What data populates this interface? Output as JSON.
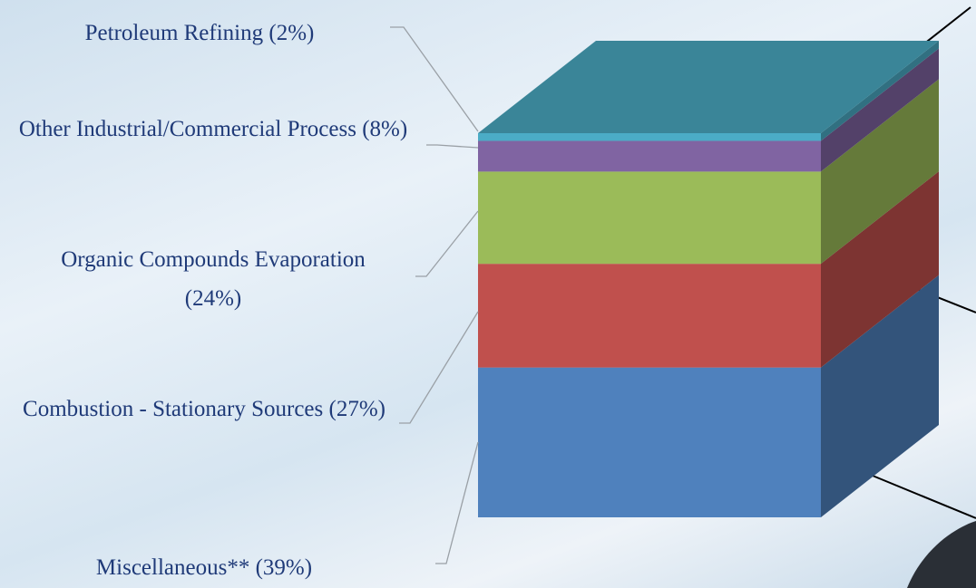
{
  "chart_data": {
    "type": "bar",
    "stacked": true,
    "three_d": true,
    "categories": [
      "Miscellaneous**",
      "Combustion - Stationary Sources",
      "Organic Compounds Evaporation",
      "Other Industrial/Commercial Process",
      "Petroleum Refining"
    ],
    "values": [
      39,
      27,
      24,
      8,
      2
    ],
    "value_labels": [
      "(39%)",
      "(27%)",
      "(24%)",
      "(8%)",
      "(2%)"
    ],
    "colors": [
      "#4f81bd",
      "#c0504d",
      "#9bbb59",
      "#8064a2",
      "#4bacc6"
    ]
  }
}
